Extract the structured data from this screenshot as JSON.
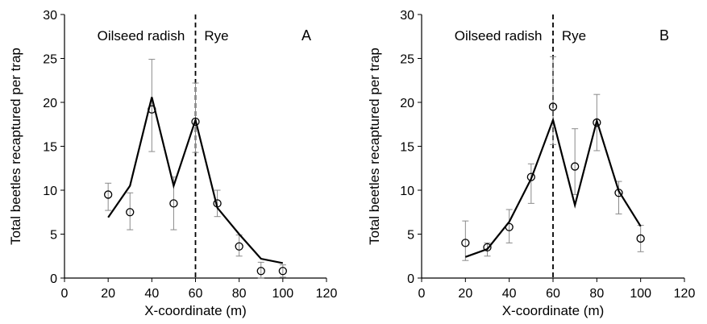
{
  "chart_data": [
    {
      "type": "line",
      "panel_label": "A",
      "xlabel": "X-coordinate (m)",
      "ylabel": "Total beetles recaptured per trap",
      "xlim": [
        0,
        120
      ],
      "ylim": [
        0,
        30
      ],
      "xticks": [
        0,
        20,
        40,
        60,
        80,
        100,
        120
      ],
      "yticks": [
        0,
        5,
        10,
        15,
        20,
        25,
        30
      ],
      "divider_x": 60,
      "regions": [
        {
          "label": "Oilseed radish",
          "side": "left"
        },
        {
          "label": "Rye",
          "side": "right"
        }
      ],
      "observed": [
        {
          "x": 20,
          "y": 9.5,
          "err_low": 7.7,
          "err_high": 10.8
        },
        {
          "x": 30,
          "y": 7.5,
          "err_low": 5.5,
          "err_high": 9.7
        },
        {
          "x": 40,
          "y": 19.2,
          "err_low": 14.4,
          "err_high": 24.9
        },
        {
          "x": 50,
          "y": 8.5,
          "err_low": 5.5,
          "err_high": 11.5
        },
        {
          "x": 60,
          "y": 17.8,
          "err_low": 14.3,
          "err_high": 22.2
        },
        {
          "x": 70,
          "y": 8.5,
          "err_low": 7.0,
          "err_high": 10.0
        },
        {
          "x": 80,
          "y": 3.6,
          "err_low": 2.5,
          "err_high": 4.9
        },
        {
          "x": 90,
          "y": 0.8,
          "err_low": 0.0,
          "err_high": 1.8
        },
        {
          "x": 100,
          "y": 0.8,
          "err_low": 0.1,
          "err_high": 1.5
        }
      ],
      "model_line": [
        {
          "x": 20,
          "y": 6.9
        },
        {
          "x": 30,
          "y": 10.5
        },
        {
          "x": 40,
          "y": 20.6
        },
        {
          "x": 50,
          "y": 10.5
        },
        {
          "x": 60,
          "y": 18.0
        },
        {
          "x": 70,
          "y": 8.0
        },
        {
          "x": 80,
          "y": 5.0
        },
        {
          "x": 90,
          "y": 2.2
        },
        {
          "x": 100,
          "y": 1.7
        }
      ]
    },
    {
      "type": "line",
      "panel_label": "B",
      "xlabel": "X-coordinate (m)",
      "ylabel": "Total beetles recaptured per trap",
      "xlim": [
        0,
        120
      ],
      "ylim": [
        0,
        30
      ],
      "xticks": [
        0,
        20,
        40,
        60,
        80,
        100,
        120
      ],
      "yticks": [
        0,
        5,
        10,
        15,
        20,
        25,
        30
      ],
      "divider_x": 60,
      "regions": [
        {
          "label": "Oilseed radish",
          "side": "left"
        },
        {
          "label": "Rye",
          "side": "right"
        }
      ],
      "observed": [
        {
          "x": 20,
          "y": 4.0,
          "err_low": 2.0,
          "err_high": 6.5
        },
        {
          "x": 30,
          "y": 3.5,
          "err_low": 2.5,
          "err_high": 4.0
        },
        {
          "x": 40,
          "y": 5.8,
          "err_low": 4.0,
          "err_high": 7.8
        },
        {
          "x": 50,
          "y": 11.5,
          "err_low": 8.5,
          "err_high": 13.0
        },
        {
          "x": 60,
          "y": 19.5,
          "err_low": 15.2,
          "err_high": 25.2
        },
        {
          "x": 70,
          "y": 12.7,
          "err_low": 9.5,
          "err_high": 17.0
        },
        {
          "x": 80,
          "y": 17.7,
          "err_low": 14.5,
          "err_high": 20.9
        },
        {
          "x": 90,
          "y": 9.7,
          "err_low": 7.3,
          "err_high": 11.0
        },
        {
          "x": 100,
          "y": 4.5,
          "err_low": 3.0,
          "err_high": 6.0
        }
      ],
      "model_line": [
        {
          "x": 20,
          "y": 2.4
        },
        {
          "x": 30,
          "y": 3.3
        },
        {
          "x": 40,
          "y": 6.4
        },
        {
          "x": 50,
          "y": 11.3
        },
        {
          "x": 60,
          "y": 18.0
        },
        {
          "x": 70,
          "y": 8.3
        },
        {
          "x": 80,
          "y": 17.9
        },
        {
          "x": 90,
          "y": 9.9
        },
        {
          "x": 100,
          "y": 5.9
        }
      ]
    }
  ]
}
